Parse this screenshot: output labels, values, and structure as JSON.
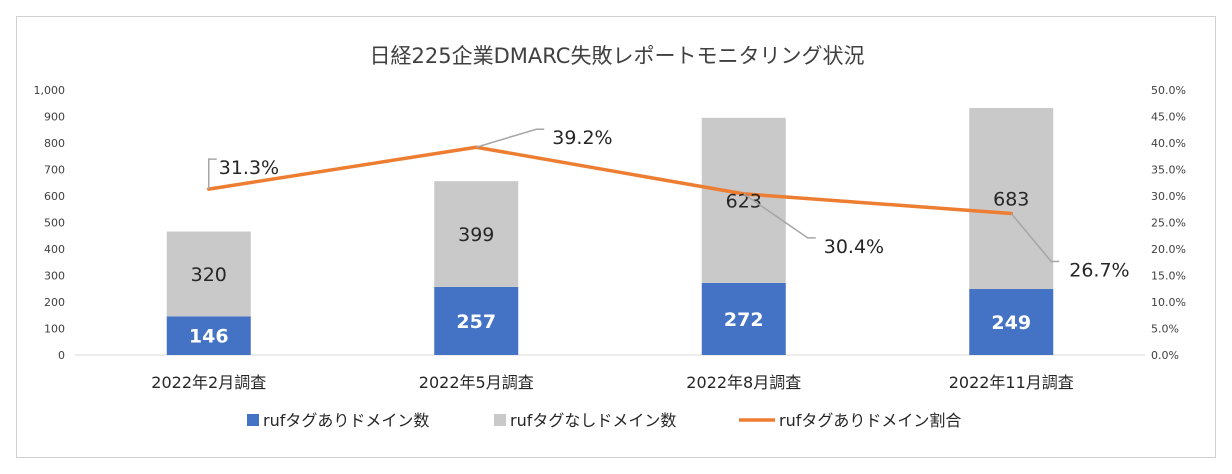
{
  "chart_data": {
    "type": "bar",
    "title": "日経225企業DMARC失敗レポートモニタリング状況",
    "categories": [
      "2022年2月調査",
      "2022年5月調査",
      "2022年8月調査",
      "2022年11月調査"
    ],
    "series": [
      {
        "name": "rufタグありドメイン数",
        "type": "bar",
        "stack": "domains",
        "color": "#4472C4",
        "values": [
          146,
          257,
          272,
          249
        ]
      },
      {
        "name": "rufタグなしドメイン数",
        "type": "bar",
        "stack": "domains",
        "color": "#C9C9C9",
        "values": [
          320,
          399,
          623,
          683
        ]
      },
      {
        "name": "rufタグありドメイン割合",
        "type": "line",
        "axis": "right",
        "color": "#ED7D31",
        "values": [
          31.3,
          39.2,
          30.4,
          26.7
        ]
      }
    ],
    "data_labels": {
      "bar_ruf": [
        "146",
        "257",
        "272",
        "249"
      ],
      "bar_noruf": [
        "320",
        "399",
        "623",
        "683"
      ],
      "line_ratio": [
        "31.3%",
        "39.2%",
        "30.4%",
        "26.7%"
      ]
    },
    "left_axis": {
      "ylim": [
        0,
        1000
      ],
      "ticks": [
        "0",
        "100",
        "200",
        "300",
        "400",
        "500",
        "600",
        "700",
        "800",
        "900",
        "1,000"
      ]
    },
    "right_axis": {
      "ylim": [
        0,
        50
      ],
      "ticks": [
        "0.0%",
        "5.0%",
        "10.0%",
        "15.0%",
        "20.0%",
        "25.0%",
        "30.0%",
        "35.0%",
        "40.0%",
        "45.0%",
        "50.0%"
      ]
    },
    "grid": false,
    "legend_position": "bottom"
  }
}
